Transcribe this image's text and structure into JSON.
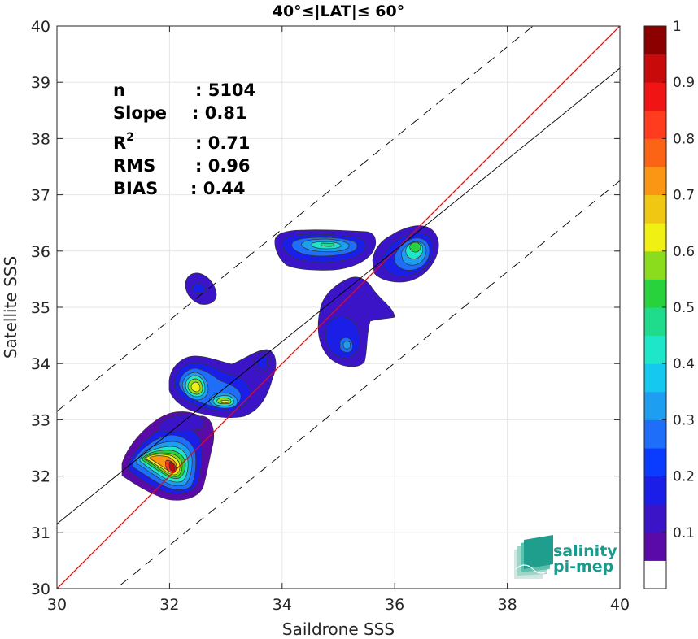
{
  "chart_data": {
    "type": "contour density scatter",
    "title": "40°≤|LAT|≤ 60°",
    "xlabel": "Saildrone SSS",
    "ylabel": "Satellite SSS",
    "xlim": [
      30,
      40
    ],
    "ylim": [
      30,
      40
    ],
    "xticks": [
      "30",
      "32",
      "34",
      "36",
      "38",
      "40"
    ],
    "yticks": [
      "30",
      "31",
      "32",
      "33",
      "34",
      "35",
      "36",
      "37",
      "38",
      "39",
      "40"
    ],
    "grid": true,
    "stats": [
      {
        "label": "n",
        "value": ": 5104"
      },
      {
        "label": "Slope",
        "value": ": 0.81"
      },
      {
        "label": "R",
        "sup": "2",
        "value": ": 0.71"
      },
      {
        "label": "RMS",
        "value": ": 0.96"
      },
      {
        "label": "BIAS",
        "value": ": 0.44"
      }
    ],
    "lines": {
      "identity": {
        "color": "#ff0000",
        "slope": 1,
        "intercept": 0
      },
      "fit": {
        "color": "#000000",
        "slope": 0.81,
        "x0": 30,
        "y0": 31.15
      },
      "fit_offsets": [
        2,
        -2
      ]
    },
    "colorbar": {
      "ticks": [
        "0.1",
        "0.2",
        "0.3",
        "0.4",
        "0.5",
        "0.6",
        "0.7",
        "0.8",
        "0.9",
        "1"
      ],
      "tick_values": [
        0.1,
        0.2,
        0.3,
        0.4,
        0.5,
        0.6,
        0.7,
        0.8,
        0.9,
        1.0
      ],
      "range": [
        0,
        1
      ],
      "colors": [
        "#ffffff",
        "#5a0aa8",
        "#3c14c8",
        "#1a1ee6",
        "#0a3cff",
        "#1e6efa",
        "#1e9ef0",
        "#14c8f0",
        "#1ee6c8",
        "#1edc8c",
        "#28d23c",
        "#8cdc1e",
        "#f0f014",
        "#f0c814",
        "#fa9614",
        "#fa6414",
        "#ff3c1e",
        "#f01414",
        "#c80a0a",
        "#8c0000"
      ]
    },
    "density_clusters": [
      {
        "x": 32.1,
        "y": 32.2,
        "peak": 0.95
      },
      {
        "x": 32.4,
        "y": 33.6,
        "peak": 0.62
      },
      {
        "x": 33.0,
        "y": 33.3,
        "peak": 0.62
      },
      {
        "x": 34.8,
        "y": 36.15,
        "peak": 0.42
      },
      {
        "x": 36.3,
        "y": 36.1,
        "peak": 0.5
      },
      {
        "x": 35.2,
        "y": 34.3,
        "peak": 0.3
      },
      {
        "x": 32.5,
        "y": 35.3,
        "peak": 0.15
      },
      {
        "x": 33.7,
        "y": 34.0,
        "peak": 0.2
      }
    ]
  },
  "logo": {
    "line1": "salinity",
    "line2": "pi-mep"
  }
}
